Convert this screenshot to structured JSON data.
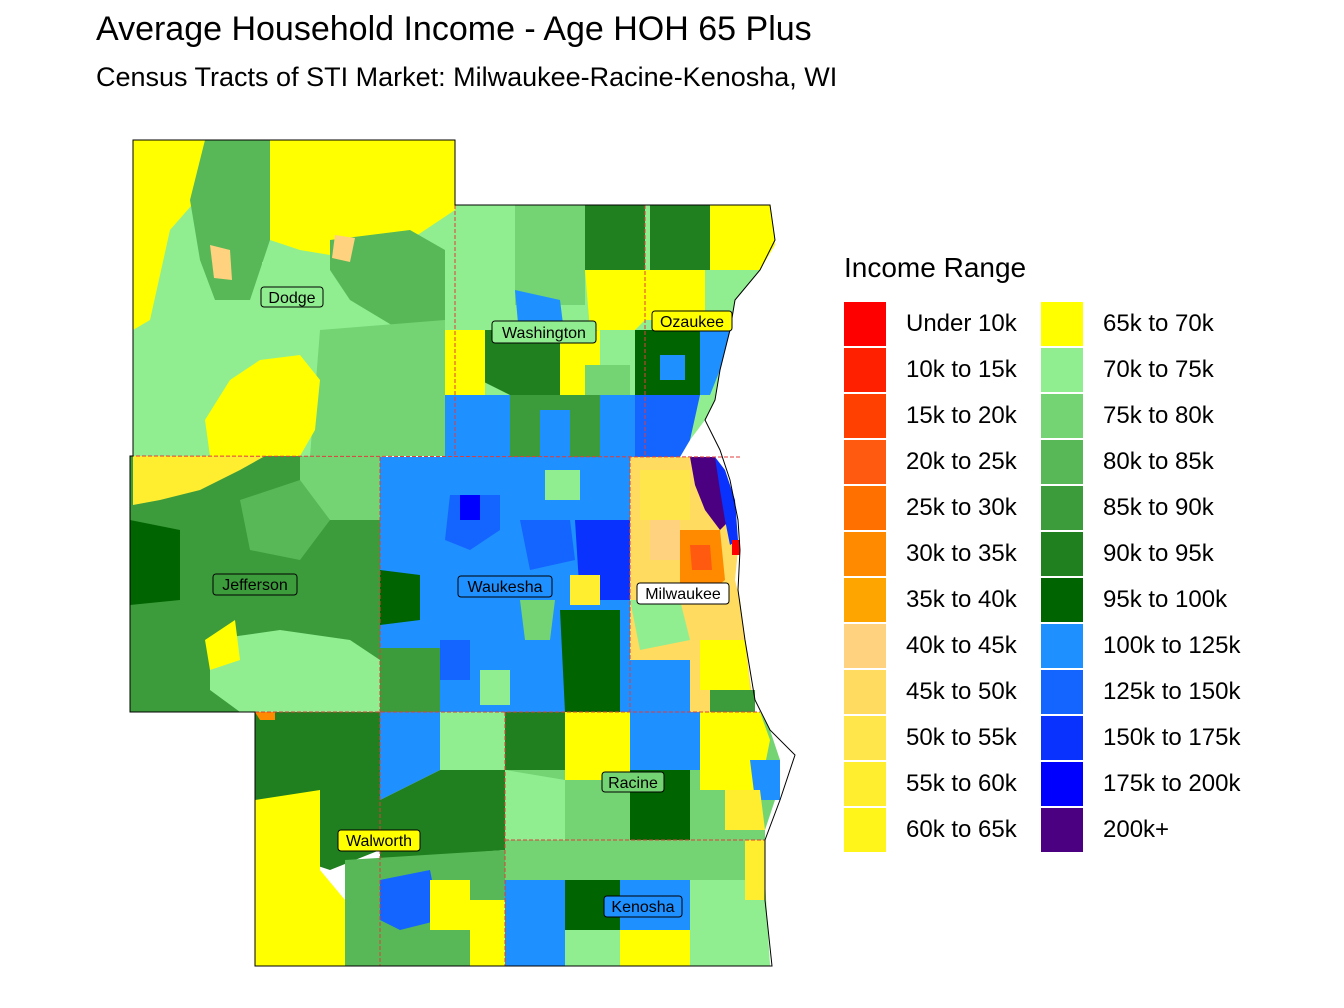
{
  "title": "Average Household Income - Age HOH 65 Plus",
  "subtitle": "Census Tracts of STI Market: Milwaukee-Racine-Kenosha, WI",
  "legend": {
    "title": "Income Range",
    "items": [
      {
        "label": "Under 10k",
        "color": "#ff0000"
      },
      {
        "label": "10k to 15k",
        "color": "#ff2000"
      },
      {
        "label": "15k to 20k",
        "color": "#ff4000"
      },
      {
        "label": "20k to 25k",
        "color": "#ff5a10"
      },
      {
        "label": "25k to 30k",
        "color": "#ff7000"
      },
      {
        "label": "30k to 35k",
        "color": "#ff8a00"
      },
      {
        "label": "35k to 40k",
        "color": "#ffa500"
      },
      {
        "label": "40k to 45k",
        "color": "#ffd27f"
      },
      {
        "label": "45k to 50k",
        "color": "#ffdb60"
      },
      {
        "label": "50k to 55k",
        "color": "#ffe64a"
      },
      {
        "label": "55k to 60k",
        "color": "#ffee30"
      },
      {
        "label": "60k to 65k",
        "color": "#fff51a"
      },
      {
        "label": "65k to 70k",
        "color": "#ffff00"
      },
      {
        "label": "70k to 75k",
        "color": "#90ee90"
      },
      {
        "label": "75k to 80k",
        "color": "#74d474"
      },
      {
        "label": "80k to 85k",
        "color": "#58b858"
      },
      {
        "label": "85k to 90k",
        "color": "#3c9c3c"
      },
      {
        "label": "90k to 95k",
        "color": "#208020"
      },
      {
        "label": "95k to 100k",
        "color": "#006400"
      },
      {
        "label": "100k to 125k",
        "color": "#1e90ff"
      },
      {
        "label": "125k to 150k",
        "color": "#1464ff"
      },
      {
        "label": "150k to 175k",
        "color": "#0a32ff"
      },
      {
        "label": "175k to 200k",
        "color": "#0000ff"
      },
      {
        "label": "200k+",
        "color": "#4b0082"
      }
    ]
  },
  "counties": [
    {
      "name": "Dodge"
    },
    {
      "name": "Washington"
    },
    {
      "name": "Ozaukee"
    },
    {
      "name": "Jefferson"
    },
    {
      "name": "Waukesha"
    },
    {
      "name": "Milwaukee"
    },
    {
      "name": "Racine"
    },
    {
      "name": "Walworth"
    },
    {
      "name": "Kenosha"
    }
  ]
}
